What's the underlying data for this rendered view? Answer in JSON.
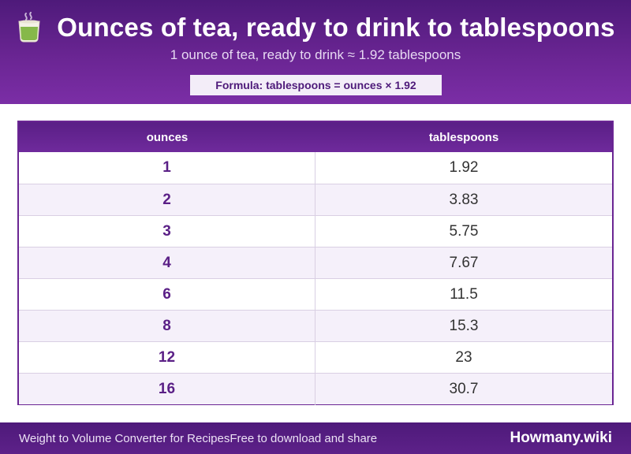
{
  "header": {
    "icon": "tea-cup-icon",
    "title": "Ounces of tea, ready to drink to tablespoons",
    "subtitle": "1 ounce of tea, ready to drink ≈ 1.92 tablespoons",
    "formula": "Formula: tablespoons = ounces × 1.92"
  },
  "table": {
    "columns": [
      "ounces",
      "tablespoons"
    ],
    "rows": [
      {
        "ounces": "1",
        "tablespoons": "1.92"
      },
      {
        "ounces": "2",
        "tablespoons": "3.83"
      },
      {
        "ounces": "3",
        "tablespoons": "5.75"
      },
      {
        "ounces": "4",
        "tablespoons": "7.67"
      },
      {
        "ounces": "6",
        "tablespoons": "11.5"
      },
      {
        "ounces": "8",
        "tablespoons": "15.3"
      },
      {
        "ounces": "12",
        "tablespoons": "23"
      },
      {
        "ounces": "16",
        "tablespoons": "30.7"
      }
    ]
  },
  "footer": {
    "left_a": "Weight to Volume Converter for Recipes",
    "left_b": "Free to download and share",
    "brand": "Howmany.wiki"
  },
  "colors": {
    "brand_purple": "#6a2593",
    "dark_purple": "#4e1a7a",
    "row_alt": "#f5f0fa"
  }
}
